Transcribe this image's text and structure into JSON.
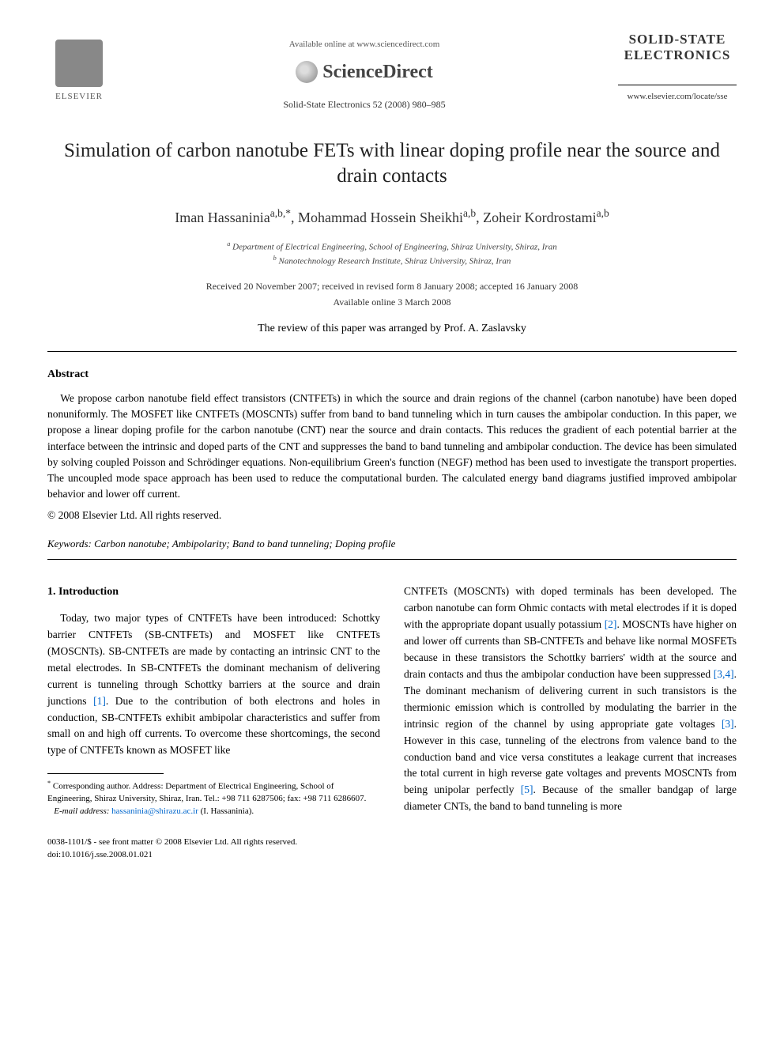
{
  "header": {
    "elsevier_label": "ELSEVIER",
    "available_online": "Available online at www.sciencedirect.com",
    "sciencedirect": "ScienceDirect",
    "citation": "Solid-State Electronics 52 (2008) 980–985",
    "journal_name_line1": "SOLID-STATE",
    "journal_name_line2": "ELECTRONICS",
    "journal_url": "www.elsevier.com/locate/sse"
  },
  "title": "Simulation of carbon nanotube FETs with linear doping profile near the source and drain contacts",
  "authors_html": "Iman Hassaninia",
  "author_1": "Iman Hassaninia",
  "author_1_sup": "a,b,*",
  "author_2": "Mohammad Hossein Sheikhi",
  "author_2_sup": "a,b",
  "author_3": "Zoheir Kordrostami",
  "author_3_sup": "a,b",
  "affiliation_a": "Department of Electrical Engineering, School of Engineering, Shiraz University, Shiraz, Iran",
  "affiliation_b": "Nanotechnology Research Institute, Shiraz University, Shiraz, Iran",
  "dates_line1": "Received 20 November 2007; received in revised form 8 January 2008; accepted 16 January 2008",
  "dates_line2": "Available online 3 March 2008",
  "review_note": "The review of this paper was arranged by Prof. A. Zaslavsky",
  "abstract": {
    "heading": "Abstract",
    "text": "We propose carbon nanotube field effect transistors (CNTFETs) in which the source and drain regions of the channel (carbon nanotube) have been doped nonuniformly. The MOSFET like CNTFETs (MOSCNTs) suffer from band to band tunneling which in turn causes the ambipolar conduction. In this paper, we propose a linear doping profile for the carbon nanotube (CNT) near the source and drain contacts. This reduces the gradient of each potential barrier at the interface between the intrinsic and doped parts of the CNT and suppresses the band to band tunneling and ambipolar conduction. The device has been simulated by solving coupled Poisson and Schrödinger equations. Non-equilibrium Green's function (NEGF) method has been used to investigate the transport properties. The uncoupled mode space approach has been used to reduce the computational burden. The calculated energy band diagrams justified improved ambipolar behavior and lower off current.",
    "copyright": "© 2008 Elsevier Ltd. All rights reserved."
  },
  "keywords": {
    "label": "Keywords:",
    "text": "Carbon nanotube; Ambipolarity; Band to band tunneling; Doping profile"
  },
  "introduction": {
    "heading": "1. Introduction",
    "col1_text_pre": "Today, two major types of CNTFETs have been introduced: Schottky barrier CNTFETs (SB-CNTFETs) and MOSFET like CNTFETs (MOSCNTs). SB-CNTFETs are made by contacting an intrinsic CNT to the metal electrodes. In SB-CNTFETs the dominant mechanism of delivering current is tunneling through Schottky barriers at the source and drain junctions ",
    "ref1": "[1]",
    "col1_text_post": ". Due to the contribution of both electrons and holes in conduction, SB-CNTFETs exhibit ambipolar characteristics and suffer from small on and high off currents. To overcome these shortcomings, the second type of CNTFETs known as MOSFET like",
    "col2_text_a": "CNTFETs (MOSCNTs) with doped terminals has been developed. The carbon nanotube can form Ohmic contacts with metal electrodes if it is doped with the appropriate dopant usually potassium ",
    "ref2": "[2]",
    "col2_text_b": ". MOSCNTs have higher on and lower off currents than SB-CNTFETs and behave like normal MOSFETs because in these transistors the Schottky barriers' width at the source and drain contacts and thus the ambipolar conduction have been suppressed ",
    "ref34": "[3,4]",
    "col2_text_c": ". The dominant mechanism of delivering current in such transistors is the thermionic emission which is controlled by modulating the barrier in the intrinsic region of the channel by using appropriate gate voltages ",
    "ref3": "[3]",
    "col2_text_d": ". However in this case, tunneling of the electrons from valence band to the conduction band and vice versa constitutes a leakage current that increases the total current in high reverse gate voltages and prevents MOSCNTs from being unipolar perfectly ",
    "ref5": "[5]",
    "col2_text_e": ". Because of the smaller bandgap of large diameter CNTs, the band to band tunneling is more"
  },
  "footnote": {
    "corresponding": "Corresponding author. Address: Department of Electrical Engineering, School of Engineering, Shiraz University, Shiraz, Iran. Tel.: +98 711 6287506; fax: +98 711 6286607.",
    "email_label": "E-mail address:",
    "email": "hassaninia@shirazu.ac.ir",
    "email_person": "(I. Hassaninia)."
  },
  "footer": {
    "line1": "0038-1101/$ - see front matter © 2008 Elsevier Ltd. All rights reserved.",
    "line2": "doi:10.1016/j.sse.2008.01.021"
  },
  "colors": {
    "link": "#0066cc",
    "text": "#000000",
    "background": "#ffffff"
  }
}
